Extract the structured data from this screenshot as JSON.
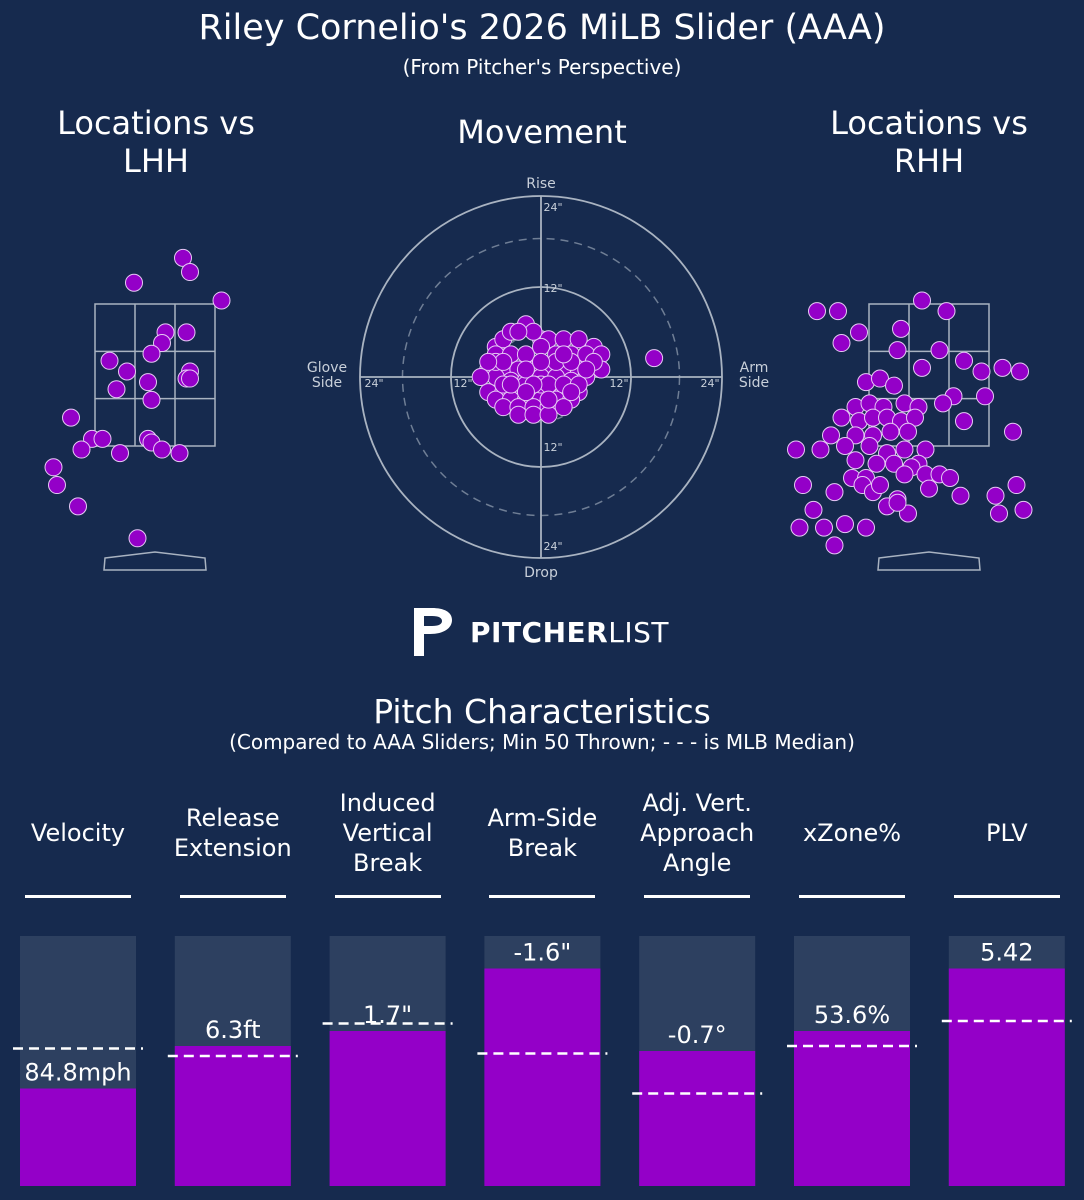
{
  "header": {
    "title": "Riley Cornelio's 2026 MiLB Slider (AAA)",
    "subtitle": "(From Pitcher's Perspective)"
  },
  "panels": {
    "lhh_title": "Locations vs LHH",
    "movement_title": "Movement",
    "rhh_title": "Locations vs RHH"
  },
  "movement_labels": {
    "rise": "Rise",
    "drop": "Drop",
    "glove": "Glove Side",
    "arm": "Arm Side",
    "ring_24": "24\"",
    "ring_12": "12\""
  },
  "logo": {
    "bold": "PITCHER",
    "light": "LIST"
  },
  "characteristics": {
    "title": "Pitch Characteristics",
    "subtitle": "(Compared to AAA Sliders; Min 50 Thrown; - - - is MLB Median)"
  },
  "colors": {
    "background": "#162a4e",
    "pitch": "#9400c8",
    "bar_bg": "#2d4060",
    "line": "#a9b3c1"
  },
  "chart_data": [
    {
      "type": "scatter",
      "name": "Locations vs LHH",
      "x": [
        -0.3,
        0.4,
        0.5,
        0.95,
        0.15,
        0.45,
        0.1,
        -0.65,
        -0.05,
        0.5,
        0.45,
        0.5,
        -0.4,
        -0.1,
        -0.05,
        -0.55,
        -1.2,
        -0.9,
        -0.75,
        -1.05,
        -1.45,
        -0.1,
        -0.05,
        0.1,
        0.35,
        -0.5,
        -1.4,
        -1.1,
        -0.25
      ],
      "y": [
        3.8,
        4.15,
        3.95,
        3.55,
        3.1,
        3.1,
        2.95,
        2.7,
        2.8,
        2.55,
        2.45,
        2.45,
        2.55,
        2.4,
        2.15,
        2.3,
        1.9,
        1.6,
        1.6,
        1.45,
        1.2,
        1.6,
        1.55,
        1.45,
        1.4,
        1.4,
        0.95,
        0.65,
        0.2
      ]
    },
    {
      "type": "scatter",
      "name": "Movement",
      "x_unit": "in",
      "y_unit": "in",
      "range": [
        -24,
        24
      ],
      "x": [
        -6,
        -5,
        -4,
        -2,
        0,
        1,
        3,
        5,
        7,
        -6,
        -4,
        -2,
        0,
        2,
        4,
        6,
        8,
        -7,
        -5,
        -3,
        -1,
        1,
        3,
        5,
        -6,
        -4,
        -2,
        0,
        2,
        4,
        6,
        8,
        -7,
        -5,
        -3,
        -1,
        1,
        3,
        5,
        -6,
        -4,
        -2,
        0,
        2,
        4,
        -5,
        -3,
        -1,
        1,
        3,
        -3,
        -1,
        1,
        -4,
        -2,
        0,
        2,
        4,
        -6,
        -2,
        0,
        -1,
        -3,
        -5,
        -7,
        7,
        1,
        3,
        5,
        -1,
        -5,
        4,
        3,
        -4,
        6,
        -2,
        1,
        -8
      ],
      "y": [
        4,
        5,
        6,
        7,
        5,
        5,
        5,
        5,
        4,
        3,
        3,
        3,
        4,
        3,
        3,
        3,
        3,
        1,
        1,
        1,
        1,
        1,
        1,
        1,
        0,
        -0.5,
        -0.5,
        0,
        0,
        -0.5,
        0,
        1,
        -2,
        -2,
        -2,
        -1,
        -1.5,
        -2,
        -2,
        -3,
        -3,
        -3,
        -3,
        -3,
        -3,
        -4,
        -4,
        -4,
        -4,
        -4,
        -5,
        -5,
        -5,
        -1,
        -1,
        -1,
        2,
        2,
        2,
        1,
        2,
        6,
        6,
        2,
        2,
        2,
        -1,
        -1,
        -1,
        -1,
        -1,
        -2,
        3,
        -1,
        1,
        -2,
        -3,
        0
      ],
      "extra_point": {
        "x": 15,
        "y": 2.5
      }
    },
    {
      "type": "scatter",
      "name": "Locations vs RHH",
      "x": [
        -0.1,
        -1.6,
        0.25,
        -1.3,
        -1.0,
        -0.4,
        -0.45,
        -1.25,
        0.15,
        0.5,
        0.75,
        1.05,
        1.3,
        -0.9,
        -0.7,
        -0.5,
        -0.1,
        0.35,
        0.8,
        -1.05,
        -0.85,
        -0.65,
        -0.35,
        -0.15,
        0.2,
        -1.25,
        -1.0,
        -0.8,
        -0.6,
        -0.4,
        -0.2,
        0.5,
        1.2,
        -1.9,
        -1.4,
        -1.05,
        -0.8,
        -0.55,
        -0.3,
        -0.05,
        -1.55,
        -1.2,
        -0.85,
        -0.6,
        -0.35,
        -0.15,
        -1.05,
        -0.75,
        -0.5,
        -0.25,
        -0.05,
        0.15,
        1.25,
        -1.1,
        -0.9,
        -0.35,
        0.3,
        -0.95,
        -1.8,
        -1.35,
        0.95,
        -0.8,
        -1.65,
        -0.45,
        -0.6,
        -0.3,
        1.0,
        0.45,
        1.35,
        -1.2,
        -0.9,
        0.0,
        -0.7,
        -0.45,
        -1.5,
        -1.35,
        -1.85
      ],
      "y": [
        3.55,
        3.4,
        3.4,
        3.4,
        3.1,
        3.15,
        2.85,
        2.95,
        2.85,
        2.7,
        2.55,
        2.6,
        2.55,
        2.4,
        2.45,
        2.35,
        2.6,
        2.2,
        2.2,
        2.05,
        2.1,
        2.05,
        2.1,
        2.05,
        2.1,
        1.9,
        1.85,
        1.9,
        1.9,
        1.85,
        1.9,
        1.85,
        1.7,
        1.45,
        1.65,
        1.65,
        1.65,
        1.7,
        1.7,
        1.45,
        1.45,
        1.5,
        1.5,
        1.4,
        1.45,
        1.25,
        1.3,
        1.25,
        1.25,
        1.2,
        1.1,
        1.1,
        0.95,
        1.05,
        1.05,
        1.1,
        1.05,
        0.95,
        0.95,
        0.85,
        0.8,
        0.85,
        0.6,
        0.75,
        0.65,
        0.55,
        0.55,
        0.8,
        0.6,
        0.4,
        0.35,
        0.9,
        0.95,
        0.7,
        0.35,
        0.1,
        0.35
      ]
    },
    {
      "type": "bar",
      "name": "Pitch Characteristics",
      "categories": [
        "Velocity",
        "Release Extension",
        "Induced Vertical Break",
        "Arm-Side Break",
        "Adj. Vert. Approach Angle",
        "xZone%",
        "PLV"
      ],
      "labels": [
        "84.8mph",
        "6.3ft",
        "1.7\"",
        "-1.6\"",
        "-0.7°",
        "53.6%",
        "5.42"
      ],
      "percentile": [
        0.39,
        0.56,
        0.62,
        0.87,
        0.54,
        0.62,
        0.87
      ],
      "median_percentile": [
        0.55,
        0.52,
        0.65,
        0.53,
        0.37,
        0.56,
        0.66
      ]
    }
  ]
}
